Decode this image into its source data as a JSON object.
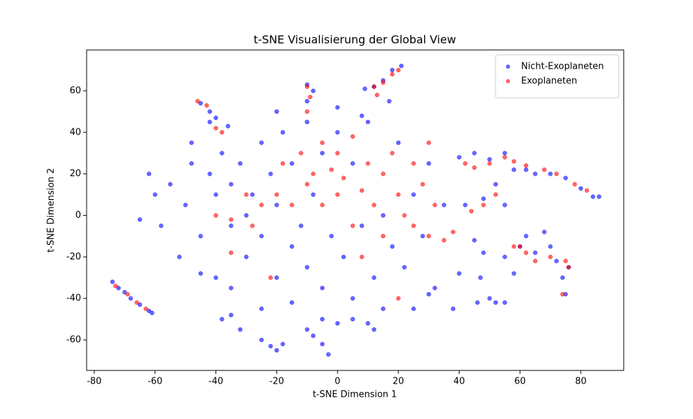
{
  "chart_data": {
    "type": "scatter",
    "title": "t-SNE Visualisierung der Global View",
    "x_label": "t-SNE Dimension 1",
    "y_label": "t-SNE Dimension 2",
    "xlim": [
      -82.5,
      94.1
    ],
    "ylim": [
      -74.7,
      79.7
    ],
    "xticks": [
      -80,
      -60,
      -40,
      -20,
      0,
      20,
      40,
      60,
      80
    ],
    "yticks": [
      -60,
      -40,
      -20,
      0,
      20,
      40,
      60
    ],
    "legend": "upper right",
    "grid": false,
    "series": [
      {
        "name": "Nicht-Exoplaneten",
        "color": "#0000ff",
        "x": [
          -55,
          -50,
          -48,
          -45,
          -42,
          -40,
          -38,
          -35,
          -35,
          -32,
          -30,
          -30,
          -28,
          -25,
          -25,
          -22,
          -20,
          -20,
          -18,
          -15,
          -15,
          -12,
          -10,
          -10,
          -8,
          -5,
          -5,
          -2,
          0,
          2,
          5,
          5,
          8,
          10,
          12,
          15,
          18,
          20,
          22,
          25,
          28,
          30,
          32,
          35,
          -58,
          -60,
          -52,
          -45,
          -40,
          -35,
          -48,
          -42,
          -20,
          -10,
          0,
          8,
          -65,
          -62,
          -5,
          0,
          -25,
          -15,
          15,
          25,
          30,
          -8,
          -10,
          -38,
          -35,
          -32,
          -25,
          -22,
          -20,
          -18,
          -10,
          -8,
          -5,
          -3,
          5,
          10,
          12,
          -74,
          -72,
          -70,
          -68,
          -65,
          -62,
          -61,
          12,
          15,
          18,
          21,
          9,
          17,
          -45,
          -42,
          -40,
          -36,
          40,
          45,
          50,
          55,
          58,
          62,
          65,
          70,
          75,
          80,
          84,
          86,
          42,
          48,
          52,
          55,
          45,
          48,
          50,
          52,
          55,
          58,
          60,
          62,
          65,
          68,
          70,
          72,
          74,
          75,
          76,
          46,
          55,
          47,
          40,
          38
        ],
        "values": [
          15,
          5,
          25,
          -10,
          20,
          10,
          30,
          -5,
          15,
          25,
          0,
          -20,
          10,
          35,
          -10,
          20,
          -30,
          5,
          40,
          -15,
          25,
          -5,
          45,
          -25,
          10,
          -35,
          30,
          -10,
          40,
          -20,
          -40,
          25,
          -5,
          45,
          -30,
          0,
          -15,
          35,
          -25,
          10,
          -10,
          25,
          -35,
          5,
          -5,
          10,
          -20,
          -28,
          -30,
          -35,
          35,
          45,
          50,
          55,
          52,
          48,
          -2,
          20,
          -50,
          -52,
          -45,
          -42,
          -45,
          -45,
          -38,
          60,
          63,
          -50,
          -48,
          -55,
          -60,
          -63,
          -65,
          -62,
          -55,
          -58,
          -62,
          -67,
          -50,
          -52,
          -55,
          -32,
          -35,
          -37,
          -40,
          -43,
          -46,
          -47,
          62,
          65,
          70,
          72,
          61,
          55,
          54,
          50,
          47,
          43,
          28,
          30,
          27,
          30,
          22,
          22,
          20,
          20,
          18,
          13,
          9,
          9,
          5,
          8,
          15,
          5,
          -12,
          -18,
          -40,
          -42,
          -20,
          -28,
          -15,
          -10,
          -18,
          -8,
          -15,
          -22,
          -30,
          -38,
          -25,
          -42,
          -42,
          -30,
          -28,
          -45
        ]
      },
      {
        "name": "Exoplaneten",
        "color": "#ff0000",
        "x": [
          -20,
          -18,
          -15,
          -12,
          -10,
          -8,
          -5,
          -5,
          -2,
          0,
          0,
          2,
          5,
          5,
          8,
          10,
          12,
          15,
          15,
          18,
          20,
          22,
          25,
          25,
          28,
          30,
          30,
          32,
          -25,
          -28,
          -30,
          -35,
          -10,
          -9,
          -10,
          -40,
          -38,
          -43,
          -46,
          42,
          45,
          50,
          55,
          58,
          62,
          68,
          72,
          78,
          82,
          44,
          48,
          52,
          38,
          35,
          60,
          62,
          65,
          70,
          75,
          76,
          74,
          58,
          -73,
          -69,
          -66,
          -63,
          12,
          15,
          18,
          20,
          13,
          -22,
          -35,
          8,
          20,
          -40
        ],
        "values": [
          10,
          25,
          5,
          30,
          15,
          20,
          35,
          5,
          22,
          10,
          30,
          18,
          -5,
          38,
          12,
          25,
          5,
          20,
          -10,
          30,
          10,
          0,
          25,
          -5,
          15,
          35,
          -10,
          5,
          5,
          -5,
          10,
          -2,
          50,
          57,
          62,
          42,
          40,
          53,
          55,
          25,
          23,
          25,
          28,
          26,
          24,
          22,
          20,
          15,
          12,
          2,
          5,
          10,
          -8,
          -12,
          -15,
          -18,
          -22,
          -20,
          -22,
          -25,
          -38,
          -15,
          -34,
          -38,
          -42,
          -45,
          62,
          64,
          68,
          70,
          58,
          -30,
          -18,
          -20,
          -40,
          0
        ]
      }
    ]
  }
}
